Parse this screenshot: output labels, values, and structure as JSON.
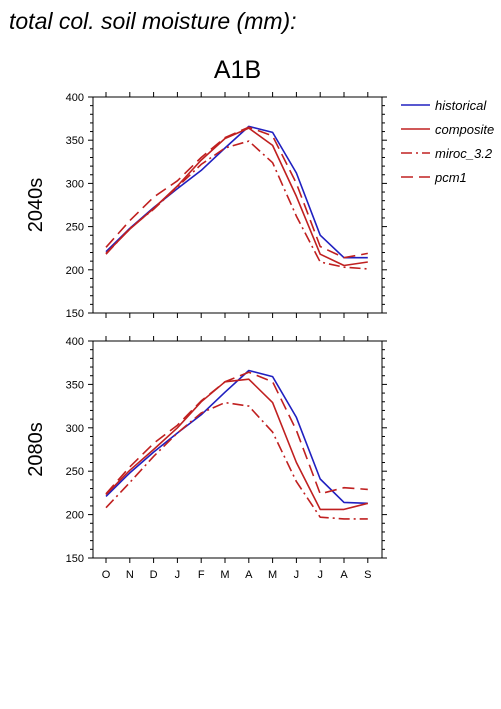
{
  "figure_title": "total col. soil moisture (mm):",
  "scenario_title": "A1B",
  "colors": {
    "historical": "#2020c0",
    "projection": "#c02020"
  },
  "chart_data": [
    {
      "type": "line",
      "panel_label": "2040s",
      "categories": [
        "O",
        "N",
        "D",
        "J",
        "F",
        "M",
        "A",
        "M",
        "J",
        "J",
        "A",
        "S"
      ],
      "ylim": [
        150,
        400
      ],
      "yticks": [
        150,
        200,
        250,
        300,
        350,
        400
      ],
      "series": [
        {
          "name": "historical",
          "style": "solid",
          "color": "#2020c0",
          "values": [
            221,
            248,
            272,
            294,
            315,
            341,
            366,
            359,
            312,
            240,
            214,
            214
          ]
        },
        {
          "name": "composite",
          "style": "solid",
          "color": "#c02020",
          "values": [
            219,
            247,
            271,
            297,
            327,
            352,
            364,
            344,
            285,
            218,
            205,
            209
          ]
        },
        {
          "name": "miroc_3.2",
          "style": "dashdot",
          "color": "#c02020",
          "values": [
            218,
            248,
            270,
            296,
            322,
            341,
            349,
            324,
            262,
            209,
            203,
            201
          ]
        },
        {
          "name": "pcm1",
          "style": "dashed",
          "color": "#c02020",
          "values": [
            226,
            257,
            284,
            303,
            330,
            353,
            365,
            355,
            300,
            227,
            214,
            219
          ]
        }
      ]
    },
    {
      "type": "line",
      "panel_label": "2080s",
      "categories": [
        "O",
        "N",
        "D",
        "J",
        "F",
        "M",
        "A",
        "M",
        "J",
        "J",
        "A",
        "S"
      ],
      "ylim": [
        150,
        400
      ],
      "yticks": [
        150,
        200,
        250,
        300,
        350,
        400
      ],
      "series": [
        {
          "name": "historical",
          "style": "solid",
          "color": "#2020c0",
          "values": [
            221,
            248,
            272,
            294,
            315,
            341,
            366,
            359,
            312,
            241,
            214,
            213
          ]
        },
        {
          "name": "composite",
          "style": "solid",
          "color": "#c02020",
          "values": [
            223,
            251,
            275,
            300,
            330,
            353,
            356,
            329,
            260,
            206,
            206,
            213
          ]
        },
        {
          "name": "miroc_3.2",
          "style": "dashdot",
          "color": "#c02020",
          "values": [
            208,
            237,
            267,
            294,
            317,
            329,
            325,
            295,
            238,
            197,
            195,
            195
          ]
        },
        {
          "name": "pcm1",
          "style": "dashed",
          "color": "#c02020",
          "values": [
            224,
            255,
            282,
            303,
            331,
            353,
            364,
            353,
            297,
            224,
            231,
            229
          ]
        }
      ]
    }
  ],
  "legend": [
    {
      "label": "historical",
      "style": "solid",
      "color": "#2020c0"
    },
    {
      "label": "composite",
      "style": "solid",
      "color": "#c02020"
    },
    {
      "label": "miroc_3.2",
      "style": "dashdot",
      "color": "#c02020"
    },
    {
      "label": "pcm1",
      "style": "dashed",
      "color": "#c02020"
    }
  ]
}
